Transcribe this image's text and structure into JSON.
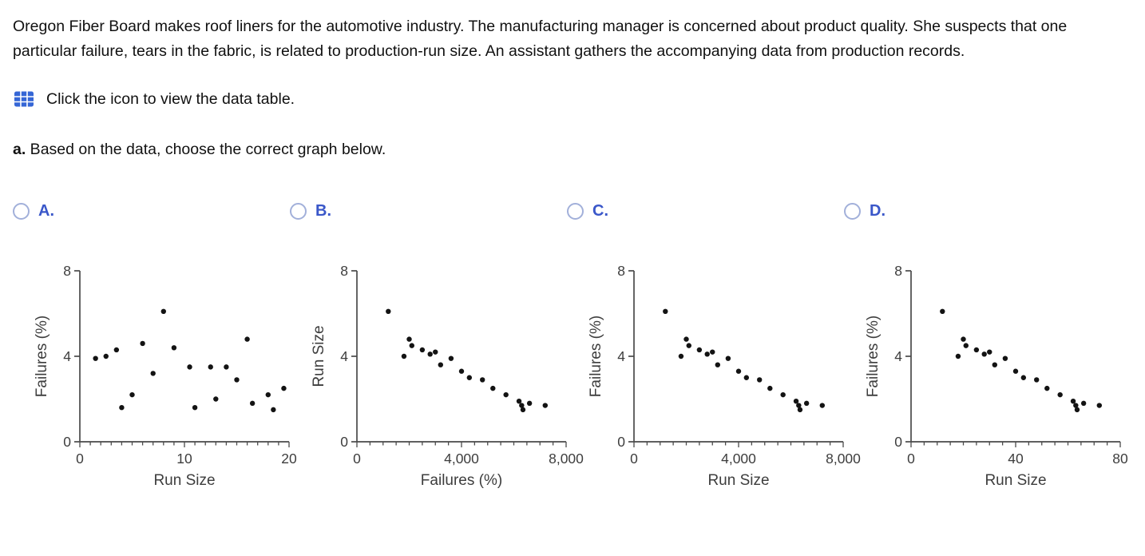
{
  "problem": {
    "statement": "Oregon Fiber Board makes roof liners for the automotive industry. The manufacturing manager is concerned about product quality. She suspects that one particular failure, tears in the fabric, is related to production-run size. An assistant gathers the accompanying data from production records.",
    "icon_hint": "Click the icon to view the data table.",
    "part_a_label": "a.",
    "part_a_text": " Based on the data, choose the correct graph below."
  },
  "icons": {
    "data_table_icon": "table-grid-icon"
  },
  "options": [
    {
      "label": "A.",
      "selected": false
    },
    {
      "label": "B.",
      "selected": false
    },
    {
      "label": "C.",
      "selected": false
    },
    {
      "label": "D.",
      "selected": false
    }
  ],
  "colors": {
    "option_blue": "#3a57c9",
    "radio_ring": "#a2b0da",
    "icon_blue": "#3566d6",
    "axis": "#4a4a4a",
    "point": "#131313"
  },
  "chart_data": [
    {
      "option": "A",
      "type": "scatter",
      "xlabel": "Run Size",
      "ylabel": "Failures (%)",
      "xlim": [
        0,
        20
      ],
      "ylim": [
        0,
        8
      ],
      "xticks": [
        0,
        10,
        20
      ],
      "xtick_labels": [
        "0",
        "10",
        "20"
      ],
      "yticks": [
        0,
        4,
        8
      ],
      "ytick_labels": [
        "0",
        "4",
        "8"
      ],
      "x_minor_step": 1,
      "grid": false,
      "points": [
        [
          1.5,
          3.9
        ],
        [
          2.5,
          4.0
        ],
        [
          3.5,
          4.3
        ],
        [
          4,
          1.6
        ],
        [
          5,
          2.2
        ],
        [
          6,
          4.6
        ],
        [
          7,
          3.2
        ],
        [
          8,
          6.1
        ],
        [
          9,
          4.4
        ],
        [
          10.5,
          3.5
        ],
        [
          11,
          1.6
        ],
        [
          12.5,
          3.5
        ],
        [
          13,
          2.0
        ],
        [
          14,
          3.5
        ],
        [
          15,
          2.9
        ],
        [
          16,
          4.8
        ],
        [
          16.5,
          1.8
        ],
        [
          18,
          2.2
        ],
        [
          18.5,
          1.5
        ],
        [
          19.5,
          2.5
        ]
      ]
    },
    {
      "option": "B",
      "type": "scatter",
      "xlabel": "Failures (%)",
      "ylabel": "Run Size",
      "xlim": [
        0,
        8000
      ],
      "ylim": [
        0,
        8
      ],
      "xticks": [
        0,
        4000,
        8000
      ],
      "xtick_labels": [
        "0",
        "4,000",
        "8,000"
      ],
      "yticks": [
        0,
        4,
        8
      ],
      "ytick_labels": [
        "0",
        "4",
        "8"
      ],
      "x_minor_step": 500,
      "grid": false,
      "points": [
        [
          1200,
          6.1
        ],
        [
          1800,
          4.0
        ],
        [
          2000,
          4.8
        ],
        [
          2100,
          4.5
        ],
        [
          2500,
          4.3
        ],
        [
          2800,
          4.1
        ],
        [
          3000,
          4.2
        ],
        [
          3200,
          3.6
        ],
        [
          3600,
          3.9
        ],
        [
          4000,
          3.3
        ],
        [
          4300,
          3.0
        ],
        [
          4800,
          2.9
        ],
        [
          5200,
          2.5
        ],
        [
          5700,
          2.2
        ],
        [
          6200,
          1.9
        ],
        [
          6300,
          1.7
        ],
        [
          6350,
          1.5
        ],
        [
          6600,
          1.8
        ],
        [
          7200,
          1.7
        ]
      ]
    },
    {
      "option": "C",
      "type": "scatter",
      "xlabel": "Run Size",
      "ylabel": "Failures (%)",
      "xlim": [
        0,
        8000
      ],
      "ylim": [
        0,
        8
      ],
      "xticks": [
        0,
        4000,
        8000
      ],
      "xtick_labels": [
        "0",
        "4,000",
        "8,000"
      ],
      "yticks": [
        0,
        4,
        8
      ],
      "ytick_labels": [
        "0",
        "4",
        "8"
      ],
      "x_minor_step": 500,
      "grid": false,
      "points": [
        [
          1200,
          6.1
        ],
        [
          1800,
          4.0
        ],
        [
          2000,
          4.8
        ],
        [
          2100,
          4.5
        ],
        [
          2500,
          4.3
        ],
        [
          2800,
          4.1
        ],
        [
          3000,
          4.2
        ],
        [
          3200,
          3.6
        ],
        [
          3600,
          3.9
        ],
        [
          4000,
          3.3
        ],
        [
          4300,
          3.0
        ],
        [
          4800,
          2.9
        ],
        [
          5200,
          2.5
        ],
        [
          5700,
          2.2
        ],
        [
          6200,
          1.9
        ],
        [
          6300,
          1.7
        ],
        [
          6350,
          1.5
        ],
        [
          6600,
          1.8
        ],
        [
          7200,
          1.7
        ]
      ]
    },
    {
      "option": "D",
      "type": "scatter",
      "xlabel": "Run Size",
      "ylabel": "Failures (%)",
      "xlim": [
        0,
        80
      ],
      "ylim": [
        0,
        8
      ],
      "xticks": [
        0,
        40,
        80
      ],
      "xtick_labels": [
        "0",
        "40",
        "80"
      ],
      "yticks": [
        0,
        4,
        8
      ],
      "ytick_labels": [
        "0",
        "4",
        "8"
      ],
      "x_minor_step": 5,
      "grid": false,
      "points": [
        [
          12,
          6.1
        ],
        [
          18,
          4.0
        ],
        [
          20,
          4.8
        ],
        [
          21,
          4.5
        ],
        [
          25,
          4.3
        ],
        [
          28,
          4.1
        ],
        [
          30,
          4.2
        ],
        [
          32,
          3.6
        ],
        [
          36,
          3.9
        ],
        [
          40,
          3.3
        ],
        [
          43,
          3.0
        ],
        [
          48,
          2.9
        ],
        [
          52,
          2.5
        ],
        [
          57,
          2.2
        ],
        [
          62,
          1.9
        ],
        [
          63,
          1.7
        ],
        [
          63.5,
          1.5
        ],
        [
          66,
          1.8
        ],
        [
          72,
          1.7
        ]
      ]
    }
  ]
}
